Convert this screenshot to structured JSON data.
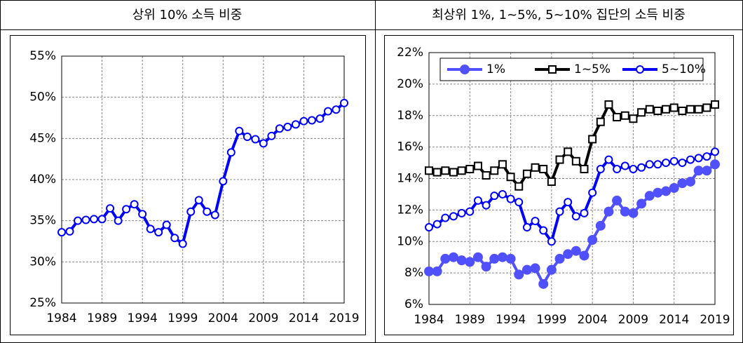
{
  "chart_data": [
    {
      "type": "line",
      "title": "상위 10% 소득 비중",
      "x": [
        1984,
        1985,
        1986,
        1987,
        1988,
        1989,
        1990,
        1991,
        1992,
        1993,
        1994,
        1995,
        1996,
        1997,
        1998,
        1999,
        2000,
        2001,
        2002,
        2003,
        2004,
        2005,
        2006,
        2007,
        2008,
        2009,
        2010,
        2011,
        2012,
        2013,
        2014,
        2015,
        2016,
        2017,
        2018,
        2019
      ],
      "values": [
        33.6,
        33.7,
        35.0,
        35.1,
        35.2,
        35.2,
        36.5,
        35.0,
        36.4,
        37.0,
        35.8,
        34.0,
        33.6,
        34.5,
        32.9,
        32.2,
        36.1,
        37.5,
        36.1,
        35.7,
        39.8,
        43.3,
        45.9,
        45.2,
        44.9,
        44.4,
        45.3,
        46.2,
        46.4,
        46.7,
        47.1,
        47.2,
        47.4,
        48.3,
        48.5,
        49.3
      ],
      "color": "#0000ff",
      "marker": "open-circle",
      "xlim": [
        1984,
        2019
      ],
      "xticks": [
        1984,
        1989,
        1994,
        1999,
        2004,
        2009,
        2014,
        2019
      ],
      "ylim": [
        25,
        55
      ],
      "yticks": [
        {
          "value": 25,
          "label": "25%"
        },
        {
          "value": 30,
          "label": "30%"
        },
        {
          "value": 35,
          "label": "35%"
        },
        {
          "value": 40,
          "label": "40%"
        },
        {
          "value": 45,
          "label": "45%"
        },
        {
          "value": 50,
          "label": "50%"
        },
        {
          "value": 55,
          "label": "55%"
        }
      ],
      "grid": true
    },
    {
      "type": "line",
      "title": "최상위 1%, 1~5%, 5~10% 집단의 소득 비중",
      "x": [
        1984,
        1985,
        1986,
        1987,
        1988,
        1989,
        1990,
        1991,
        1992,
        1993,
        1994,
        1995,
        1996,
        1997,
        1998,
        1999,
        2000,
        2001,
        2002,
        2003,
        2004,
        2005,
        2006,
        2007,
        2008,
        2009,
        2010,
        2011,
        2012,
        2013,
        2014,
        2015,
        2016,
        2017,
        2018,
        2019
      ],
      "series": [
        {
          "name": "1%",
          "color": "#5050ff",
          "marker": "filled-circle",
          "values": [
            8.1,
            8.1,
            8.9,
            9.0,
            8.8,
            8.7,
            9.0,
            8.4,
            8.9,
            9.0,
            8.9,
            7.9,
            8.2,
            8.3,
            7.3,
            8.2,
            8.9,
            9.2,
            9.4,
            9.1,
            10.1,
            11.0,
            11.9,
            12.6,
            11.9,
            11.8,
            12.4,
            12.9,
            13.1,
            13.2,
            13.4,
            13.7,
            13.8,
            14.5,
            14.5,
            14.9
          ]
        },
        {
          "name": "1~5%",
          "color": "#000000",
          "marker": "open-square",
          "values": [
            14.5,
            14.4,
            14.5,
            14.4,
            14.5,
            14.6,
            14.8,
            14.2,
            14.5,
            14.9,
            14.1,
            13.5,
            14.3,
            14.7,
            14.6,
            13.8,
            15.2,
            15.7,
            15.1,
            14.6,
            16.5,
            17.6,
            18.7,
            17.9,
            18.0,
            17.8,
            18.2,
            18.4,
            18.3,
            18.4,
            18.5,
            18.3,
            18.4,
            18.4,
            18.5,
            18.7
          ]
        },
        {
          "name": "5~10%",
          "color": "#0000ff",
          "marker": "open-circle",
          "values": [
            10.9,
            11.1,
            11.5,
            11.6,
            11.8,
            11.9,
            12.6,
            12.3,
            12.9,
            13.0,
            12.7,
            12.5,
            10.9,
            11.3,
            10.7,
            10.0,
            11.9,
            12.5,
            11.6,
            11.8,
            13.1,
            14.6,
            15.2,
            14.6,
            14.8,
            14.6,
            14.7,
            14.9,
            14.9,
            15.0,
            15.1,
            15.0,
            15.2,
            15.3,
            15.4,
            15.7
          ]
        }
      ],
      "xlim": [
        1984,
        2019
      ],
      "xticks": [
        1984,
        1989,
        1994,
        1999,
        2004,
        2009,
        2014,
        2019
      ],
      "ylim": [
        6,
        22
      ],
      "yticks": [
        {
          "value": 6,
          "label": "6%"
        },
        {
          "value": 8,
          "label": "8%"
        },
        {
          "value": 10,
          "label": "10%"
        },
        {
          "value": 12,
          "label": "12%"
        },
        {
          "value": 14,
          "label": "14%"
        },
        {
          "value": 16,
          "label": "16%"
        },
        {
          "value": 18,
          "label": "18%"
        },
        {
          "value": 20,
          "label": "20%"
        },
        {
          "value": 22,
          "label": "22%"
        }
      ],
      "grid": true,
      "legend": "upper center"
    }
  ]
}
